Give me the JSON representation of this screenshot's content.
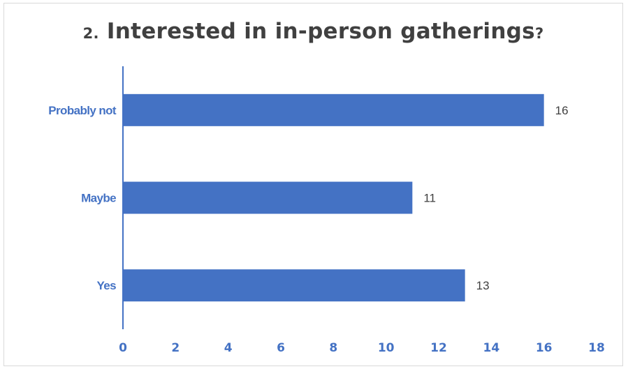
{
  "chart_data": {
    "type": "bar",
    "orientation": "horizontal",
    "title_number": "2.",
    "title_text": "Interested in in-person gatherings",
    "title_suffix": "?",
    "categories": [
      "Probably not",
      "Maybe",
      "Yes"
    ],
    "values": [
      16,
      11,
      13
    ],
    "xlim": [
      0,
      18
    ],
    "xticks": [
      0,
      2,
      4,
      6,
      8,
      10,
      12,
      14,
      16,
      18
    ],
    "grid": false,
    "legend": "none",
    "bar_color": "#4472c4",
    "label_color": "#4472c4",
    "data_label_color": "#404040"
  }
}
